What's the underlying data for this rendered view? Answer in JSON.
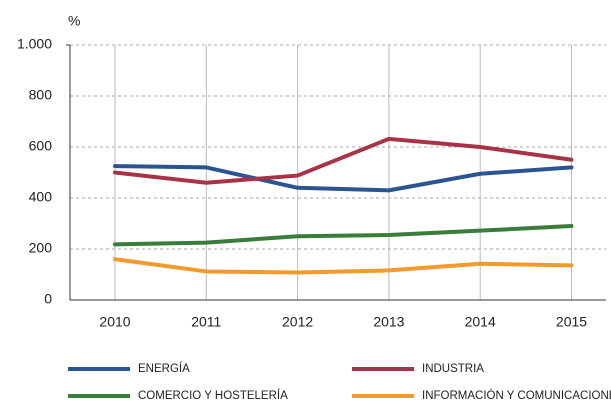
{
  "chart_data": {
    "type": "line",
    "y_label": "%",
    "categories": [
      "2010",
      "2011",
      "2012",
      "2013",
      "2014",
      "2015"
    ],
    "series": [
      {
        "name": "ENERGÍA",
        "color": "#2a5591",
        "values": [
          525,
          520,
          440,
          430,
          495,
          520
        ]
      },
      {
        "name": "INDUSTRIA",
        "color": "#a83349",
        "values": [
          500,
          460,
          488,
          632,
          600,
          550
        ]
      },
      {
        "name": "COMERCIO Y HOSTELERÍA",
        "color": "#3a7d3a",
        "values": [
          218,
          225,
          250,
          255,
          272,
          290
        ]
      },
      {
        "name": "INFORMACIÓN Y COMUNICACIONES",
        "color": "#f29a2e",
        "values": [
          160,
          112,
          108,
          116,
          142,
          136
        ]
      }
    ],
    "ylim": [
      0,
      1000
    ],
    "yticks": [
      0,
      200,
      400,
      600,
      800,
      {
        "value": 1000,
        "label": "1.000"
      }
    ],
    "grid": true
  }
}
